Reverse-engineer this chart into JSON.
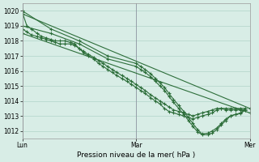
{
  "title": "",
  "xlabel": "Pression niveau de la mer( hPa )",
  "ylabel": "",
  "bg_color": "#d8ede6",
  "grid_color": "#b0d4c8",
  "line_color": "#2d6e3a",
  "marker_color": "#2d6e3a",
  "ylim": [
    1011.5,
    1020.5
  ],
  "yticks": [
    1012,
    1013,
    1014,
    1015,
    1016,
    1017,
    1018,
    1019,
    1020
  ],
  "xtick_labels": [
    "Lun",
    "Mar",
    "Mer"
  ],
  "xtick_positions": [
    0.0,
    1.0,
    2.0
  ],
  "lines": [
    {
      "x": [
        0.0,
        0.04,
        0.08,
        0.13,
        0.17,
        0.21,
        0.25,
        0.29,
        0.33,
        0.375,
        0.42,
        0.46,
        0.5,
        0.54,
        0.58,
        0.63,
        0.67,
        0.71,
        0.75,
        0.79,
        0.83,
        0.875,
        0.92,
        0.96,
        1.0,
        1.04,
        1.08,
        1.13,
        1.17,
        1.21,
        1.25,
        1.29,
        1.33,
        1.375,
        1.42,
        1.46,
        1.5,
        1.54,
        1.58,
        1.63,
        1.67,
        1.71,
        1.75,
        1.79,
        1.83,
        1.875,
        1.92,
        1.96
      ],
      "y": [
        1019.9,
        1019.0,
        1018.8,
        1018.5,
        1018.3,
        1018.2,
        1018.1,
        1018.0,
        1018.0,
        1018.0,
        1017.9,
        1017.8,
        1017.5,
        1017.2,
        1017.0,
        1016.8,
        1016.5,
        1016.3,
        1016.1,
        1015.9,
        1015.7,
        1015.5,
        1015.3,
        1015.1,
        1014.9,
        1014.7,
        1014.5,
        1014.2,
        1014.0,
        1013.8,
        1013.5,
        1013.3,
        1013.2,
        1013.1,
        1013.0,
        1012.9,
        1012.8,
        1012.9,
        1013.0,
        1013.1,
        1013.2,
        1013.4,
        1013.5,
        1013.5,
        1013.5,
        1013.5,
        1013.5,
        1013.5
      ]
    },
    {
      "x": [
        0.0,
        0.04,
        0.08,
        0.13,
        0.17,
        0.21,
        0.25,
        0.29,
        0.33,
        0.375,
        0.42,
        0.46,
        0.5,
        0.54,
        0.58,
        0.63,
        0.67,
        0.71,
        0.75,
        0.79,
        0.83,
        0.875,
        0.92,
        0.96,
        1.0,
        1.04,
        1.08,
        1.13,
        1.17,
        1.21,
        1.25,
        1.29,
        1.33,
        1.375,
        1.42,
        1.46,
        1.5,
        1.54,
        1.58,
        1.63,
        1.67,
        1.71,
        1.75,
        1.79,
        1.83,
        1.875,
        1.92,
        1.96
      ],
      "y": [
        1018.8,
        1018.6,
        1018.4,
        1018.3,
        1018.2,
        1018.1,
        1018.0,
        1017.9,
        1017.8,
        1017.8,
        1017.8,
        1017.7,
        1017.5,
        1017.3,
        1017.1,
        1016.9,
        1016.7,
        1016.5,
        1016.3,
        1016.1,
        1015.9,
        1015.7,
        1015.5,
        1015.3,
        1015.1,
        1014.9,
        1014.7,
        1014.4,
        1014.2,
        1014.0,
        1013.8,
        1013.6,
        1013.4,
        1013.3,
        1013.2,
        1013.1,
        1013.0,
        1013.1,
        1013.2,
        1013.3,
        1013.4,
        1013.5,
        1013.5,
        1013.4,
        1013.4,
        1013.4,
        1013.4,
        1013.4
      ]
    },
    {
      "x": [
        0.0,
        0.25,
        0.5,
        0.75,
        1.0,
        1.04,
        1.08,
        1.13,
        1.17,
        1.21,
        1.25,
        1.29,
        1.33,
        1.375,
        1.42,
        1.46,
        1.5,
        1.54,
        1.58,
        1.63,
        1.67,
        1.71,
        1.75,
        1.79,
        1.83,
        1.875,
        1.92,
        1.96
      ],
      "y": [
        1020.0,
        1018.8,
        1018.0,
        1017.0,
        1016.5,
        1016.3,
        1016.1,
        1015.8,
        1015.5,
        1015.2,
        1014.9,
        1014.5,
        1014.1,
        1013.7,
        1013.3,
        1012.9,
        1012.5,
        1012.1,
        1011.8,
        1011.85,
        1012.0,
        1012.2,
        1012.5,
        1012.8,
        1013.0,
        1013.1,
        1013.2,
        1013.5
      ]
    },
    {
      "x": [
        0.0,
        0.25,
        0.5,
        0.75,
        1.0,
        1.04,
        1.08,
        1.13,
        1.17,
        1.21,
        1.25,
        1.29,
        1.33,
        1.375,
        1.42,
        1.46,
        1.5,
        1.54,
        1.58,
        1.63,
        1.67,
        1.71,
        1.75,
        1.79,
        1.83,
        1.875,
        1.92,
        1.96
      ],
      "y": [
        1019.0,
        1018.5,
        1017.8,
        1016.8,
        1016.3,
        1016.1,
        1015.9,
        1015.6,
        1015.3,
        1015.0,
        1014.7,
        1014.3,
        1013.9,
        1013.5,
        1013.1,
        1012.7,
        1012.3,
        1011.95,
        1011.75,
        1011.75,
        1011.85,
        1012.1,
        1012.4,
        1012.7,
        1013.0,
        1013.1,
        1013.15,
        1013.4
      ]
    },
    {
      "x": [
        0.0,
        2.0
      ],
      "y": [
        1019.8,
        1013.5
      ]
    },
    {
      "x": [
        0.0,
        2.0
      ],
      "y": [
        1018.5,
        1013.2
      ]
    }
  ]
}
